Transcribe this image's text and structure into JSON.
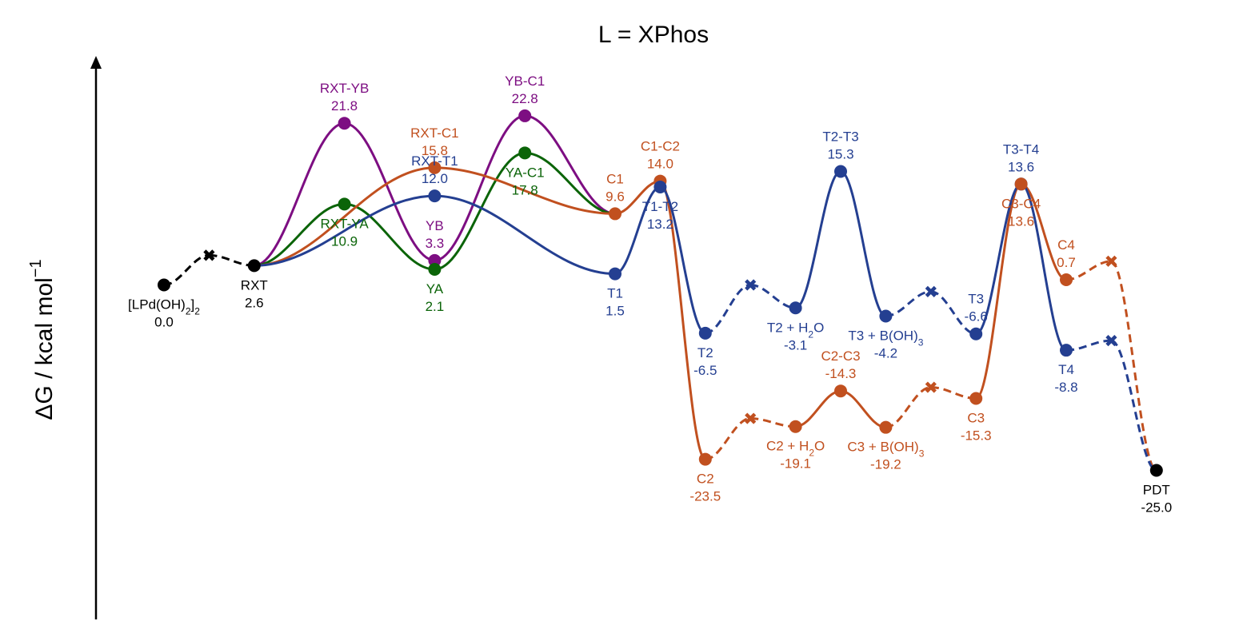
{
  "chart_data": {
    "type": "line",
    "title": "L = XPhos",
    "ylabel": "ΔG / kcal mol",
    "ylabel_sup": "−1",
    "xlabel": "",
    "grid": false,
    "legend": "none",
    "colors": {
      "black": "#000000",
      "blue": "#243f91",
      "orange": "#c1501f",
      "purple": "#7d0e82",
      "green": "#0b6408"
    },
    "points": {
      "LPd": {
        "name": "[LPd(OH)₂]₂",
        "value": "0.0",
        "x": 0,
        "y": 0.0,
        "color": "black"
      },
      "RXT": {
        "name": "RXT",
        "value": "2.6",
        "x": 2,
        "y": 2.6,
        "color": "black"
      },
      "RXT-YB": {
        "name": "RXT-YB",
        "value": "21.8",
        "x": 4,
        "y": 21.8,
        "color": "purple"
      },
      "RXT-YA": {
        "name": "RXT-YA",
        "value": "10.9",
        "x": 4,
        "y": 10.9,
        "color": "green"
      },
      "RXT-C1": {
        "name": "RXT-C1",
        "value": "15.8",
        "x": 6,
        "y": 15.8,
        "color": "orange"
      },
      "RXT-T1": {
        "name": "RXT-T1",
        "value": "12.0",
        "x": 6,
        "y": 12.0,
        "color": "blue"
      },
      "YB": {
        "name": "YB",
        "value": "3.3",
        "x": 6,
        "y": 3.3,
        "color": "purple"
      },
      "YA": {
        "name": "YA",
        "value": "2.1",
        "x": 6,
        "y": 2.1,
        "color": "green"
      },
      "YB-C1": {
        "name": "YB-C1",
        "value": "22.8",
        "x": 8,
        "y": 22.8,
        "color": "purple"
      },
      "YA-C1": {
        "name": "YA-C1",
        "value": "17.8",
        "x": 8,
        "y": 17.8,
        "color": "green"
      },
      "C1": {
        "name": "C1",
        "value": "9.6",
        "x": 10,
        "y": 9.6,
        "color": "orange"
      },
      "T1": {
        "name": "T1",
        "value": "1.5",
        "x": 10,
        "y": 1.5,
        "color": "blue"
      },
      "C1-C2": {
        "name": "C1-C2",
        "value": "14.0",
        "x": 11,
        "y": 14.0,
        "color": "orange"
      },
      "T1-T2": {
        "name": "T1-T2",
        "value": "13.2",
        "x": 11,
        "y": 13.2,
        "color": "blue"
      },
      "T2": {
        "name": "T2",
        "value": "-6.5",
        "x": 12,
        "y": -6.5,
        "color": "blue"
      },
      "C2": {
        "name": "C2",
        "value": "-23.5",
        "x": 12,
        "y": -23.5,
        "color": "orange"
      },
      "T2+H2O": {
        "name": "T2 + H₂O",
        "value": "-3.1",
        "x": 14,
        "y": -3.1,
        "color": "blue"
      },
      "C2+H2O": {
        "name": "C2 + H₂O",
        "value": "-19.1",
        "x": 14,
        "y": -19.1,
        "color": "orange"
      },
      "T2-T3": {
        "name": "T2-T3",
        "value": "15.3",
        "x": 15,
        "y": 15.3,
        "color": "blue"
      },
      "C2-C3": {
        "name": "C2-C3",
        "value": "-14.3",
        "x": 15,
        "y": -14.3,
        "color": "orange"
      },
      "T3+BOH3": {
        "name": "T3 + B(OH)₃",
        "value": "-4.2",
        "x": 16,
        "y": -4.2,
        "color": "blue"
      },
      "C3+BOH3": {
        "name": "C3 + B(OH)₃",
        "value": "-19.2",
        "x": 16,
        "y": -19.2,
        "color": "orange"
      },
      "T3": {
        "name": "T3",
        "value": "-6.6",
        "x": 18,
        "y": -6.6,
        "color": "blue"
      },
      "C3": {
        "name": "C3",
        "value": "-15.3",
        "x": 18,
        "y": -15.3,
        "color": "orange"
      },
      "T3-T4": {
        "name": "T3-T4",
        "value": "13.6",
        "x": 19,
        "y": 13.6,
        "color": "blue"
      },
      "C3-C4": {
        "name": "C3-C4",
        "value": "13.6",
        "x": 19,
        "y": 13.6,
        "color": "orange"
      },
      "C4": {
        "name": "C4",
        "value": "0.7",
        "x": 20,
        "y": 0.7,
        "color": "orange"
      },
      "T4": {
        "name": "T4",
        "value": "-8.8",
        "x": 20,
        "y": -8.8,
        "color": "blue"
      },
      "PDT": {
        "name": "PDT",
        "value": "-25.0",
        "x": 22,
        "y": -25.0,
        "color": "black"
      }
    },
    "crosses": [
      {
        "x": 1,
        "y": 4.0,
        "color": "black"
      },
      {
        "x": 13,
        "y": 0.0,
        "color": "blue"
      },
      {
        "x": 13,
        "y": -18.0,
        "color": "orange"
      },
      {
        "x": 17,
        "y": -0.9,
        "color": "blue"
      },
      {
        "x": 17,
        "y": -13.8,
        "color": "orange"
      },
      {
        "x": 21,
        "y": 3.2,
        "color": "orange"
      },
      {
        "x": 21,
        "y": -7.5,
        "color": "blue"
      }
    ],
    "segments": [
      {
        "from": [
          0,
          0.0
        ],
        "to": [
          1,
          4.0
        ],
        "color": "black",
        "style": "dashed"
      },
      {
        "from": [
          1,
          4.0
        ],
        "to": [
          2,
          2.6
        ],
        "color": "black",
        "style": "dashed"
      },
      {
        "from": [
          2,
          2.6
        ],
        "to": [
          4,
          21.8
        ],
        "color": "purple",
        "style": "solid"
      },
      {
        "from": [
          4,
          21.8
        ],
        "to": [
          6,
          3.3
        ],
        "color": "purple",
        "style": "solid"
      },
      {
        "from": [
          6,
          3.3
        ],
        "to": [
          8,
          22.8
        ],
        "color": "purple",
        "style": "solid"
      },
      {
        "from": [
          8,
          22.8
        ],
        "to": [
          10,
          9.6
        ],
        "color": "purple",
        "style": "solid"
      },
      {
        "from": [
          2,
          2.6
        ],
        "to": [
          4,
          10.9
        ],
        "color": "green",
        "style": "solid"
      },
      {
        "from": [
          4,
          10.9
        ],
        "to": [
          6,
          2.1
        ],
        "color": "green",
        "style": "solid"
      },
      {
        "from": [
          6,
          2.1
        ],
        "to": [
          8,
          17.8
        ],
        "color": "green",
        "style": "solid"
      },
      {
        "from": [
          8,
          17.8
        ],
        "to": [
          10,
          9.6
        ],
        "color": "green",
        "style": "solid"
      },
      {
        "from": [
          2,
          2.6
        ],
        "to": [
          6,
          15.8
        ],
        "color": "orange",
        "style": "solid"
      },
      {
        "from": [
          6,
          15.8
        ],
        "to": [
          10,
          9.6
        ],
        "color": "orange",
        "style": "solid"
      },
      {
        "from": [
          2,
          2.6
        ],
        "to": [
          6,
          12.0
        ],
        "color": "blue",
        "style": "solid"
      },
      {
        "from": [
          6,
          12.0
        ],
        "to": [
          10,
          1.5
        ],
        "color": "blue",
        "style": "solid"
      },
      {
        "from": [
          10,
          9.6
        ],
        "to": [
          11,
          14.0
        ],
        "color": "orange",
        "style": "solid"
      },
      {
        "from": [
          11,
          14.0
        ],
        "to": [
          12,
          -23.5
        ],
        "color": "orange",
        "style": "solid"
      },
      {
        "from": [
          10,
          1.5
        ],
        "to": [
          11,
          13.2
        ],
        "color": "blue",
        "style": "solid"
      },
      {
        "from": [
          11,
          13.2
        ],
        "to": [
          12,
          -6.5
        ],
        "color": "blue",
        "style": "solid"
      },
      {
        "from": [
          12,
          -6.5
        ],
        "to": [
          13,
          0.0
        ],
        "color": "blue",
        "style": "dashed"
      },
      {
        "from": [
          13,
          0.0
        ],
        "to": [
          14,
          -3.1
        ],
        "color": "blue",
        "style": "dashed"
      },
      {
        "from": [
          12,
          -23.5
        ],
        "to": [
          13,
          -18.0
        ],
        "color": "orange",
        "style": "dashed"
      },
      {
        "from": [
          13,
          -18.0
        ],
        "to": [
          14,
          -19.1
        ],
        "color": "orange",
        "style": "dashed"
      },
      {
        "from": [
          14,
          -3.1
        ],
        "to": [
          15,
          15.3
        ],
        "color": "blue",
        "style": "solid"
      },
      {
        "from": [
          15,
          15.3
        ],
        "to": [
          16,
          -4.2
        ],
        "color": "blue",
        "style": "solid"
      },
      {
        "from": [
          14,
          -19.1
        ],
        "to": [
          15,
          -14.3
        ],
        "color": "orange",
        "style": "solid"
      },
      {
        "from": [
          15,
          -14.3
        ],
        "to": [
          16,
          -19.2
        ],
        "color": "orange",
        "style": "solid"
      },
      {
        "from": [
          16,
          -4.2
        ],
        "to": [
          17,
          -0.9
        ],
        "color": "blue",
        "style": "dashed"
      },
      {
        "from": [
          17,
          -0.9
        ],
        "to": [
          18,
          -6.6
        ],
        "color": "blue",
        "style": "dashed"
      },
      {
        "from": [
          16,
          -19.2
        ],
        "to": [
          17,
          -13.8
        ],
        "color": "orange",
        "style": "dashed"
      },
      {
        "from": [
          17,
          -13.8
        ],
        "to": [
          18,
          -15.3
        ],
        "color": "orange",
        "style": "dashed"
      },
      {
        "from": [
          18,
          -15.3
        ],
        "to": [
          19,
          13.6
        ],
        "color": "orange",
        "style": "solid"
      },
      {
        "from": [
          19,
          13.6
        ],
        "to": [
          20,
          0.7
        ],
        "color": "orange",
        "style": "solid"
      },
      {
        "from": [
          18,
          -6.6
        ],
        "to": [
          19,
          13.6
        ],
        "color": "blue",
        "style": "solid"
      },
      {
        "from": [
          19,
          13.6
        ],
        "to": [
          20,
          -8.8
        ],
        "color": "blue",
        "style": "solid"
      },
      {
        "from": [
          20,
          0.7
        ],
        "to": [
          21,
          3.2
        ],
        "color": "orange",
        "style": "dashed"
      },
      {
        "from": [
          21,
          3.2
        ],
        "to": [
          22,
          -25.0
        ],
        "color": "orange",
        "style": "dashed"
      },
      {
        "from": [
          20,
          -8.8
        ],
        "to": [
          21,
          -7.5
        ],
        "color": "blue",
        "style": "dashed"
      },
      {
        "from": [
          21,
          -7.5
        ],
        "to": [
          22,
          -25.0
        ],
        "color": "blue",
        "style": "dashed"
      }
    ],
    "labels": [
      {
        "point": "LPd",
        "pos": "below"
      },
      {
        "point": "RXT",
        "pos": "below"
      },
      {
        "point": "RXT-YB",
        "pos": "above"
      },
      {
        "point": "RXT-YA",
        "pos": "below"
      },
      {
        "point": "RXT-C1",
        "pos": "above"
      },
      {
        "point": "RXT-T1",
        "pos": "above"
      },
      {
        "point": "YB",
        "pos": "above"
      },
      {
        "point": "YA",
        "pos": "below"
      },
      {
        "point": "YB-C1",
        "pos": "above"
      },
      {
        "point": "YA-C1",
        "pos": "below"
      },
      {
        "point": "C1",
        "pos": "above"
      },
      {
        "point": "T1",
        "pos": "below"
      },
      {
        "point": "C1-C2",
        "pos": "above"
      },
      {
        "point": "T1-T2",
        "pos": "below"
      },
      {
        "point": "T2",
        "pos": "below"
      },
      {
        "point": "C2",
        "pos": "below"
      },
      {
        "point": "T2+H2O",
        "pos": "below"
      },
      {
        "point": "C2+H2O",
        "pos": "below"
      },
      {
        "point": "T2-T3",
        "pos": "above"
      },
      {
        "point": "C2-C3",
        "pos": "above"
      },
      {
        "point": "T3+BOH3",
        "pos": "below"
      },
      {
        "point": "C3+BOH3",
        "pos": "below"
      },
      {
        "point": "T3",
        "pos": "above"
      },
      {
        "point": "C3",
        "pos": "below"
      },
      {
        "point": "T3-T4",
        "pos": "above"
      },
      {
        "point": "C3-C4",
        "pos": "below"
      },
      {
        "point": "C4",
        "pos": "above"
      },
      {
        "point": "T4",
        "pos": "below"
      },
      {
        "point": "PDT",
        "pos": "below"
      }
    ]
  }
}
